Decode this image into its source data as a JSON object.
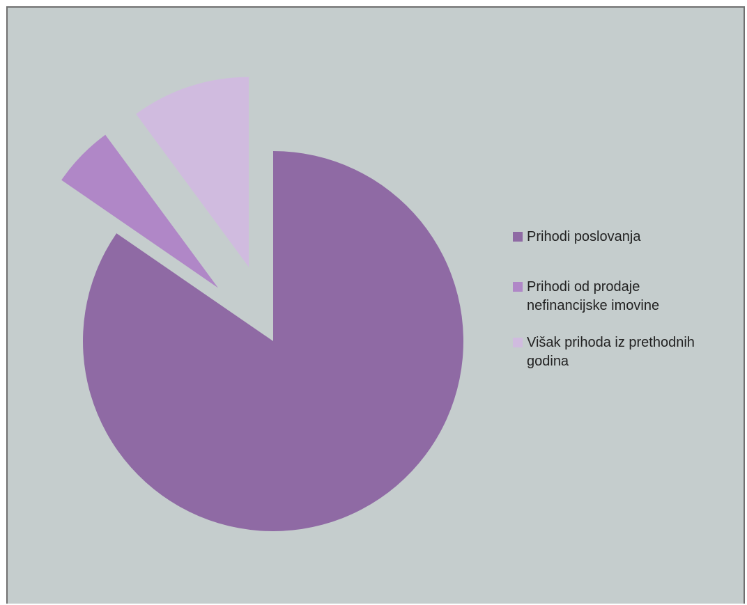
{
  "chart_data": {
    "type": "pie",
    "categories": [
      "Prihodi poslovanja",
      "Prihodi od prodaje nefinancijske imovine",
      "Višak prihoda iz prethodnih godina"
    ],
    "values": [
      84.6,
      5.3,
      10.1
    ],
    "colors": [
      "#8f6aa4",
      "#b087c7",
      "#d0bbdf"
    ],
    "exploded": [
      false,
      true,
      true
    ],
    "legend_position": "right",
    "legend_lines": [
      [
        "Prihodi poslovanja"
      ],
      [
        "Prihodi od prodaje",
        "nefinancijske imovine"
      ],
      [
        "Višak prihoda iz prethodnih",
        "godina"
      ]
    ]
  }
}
